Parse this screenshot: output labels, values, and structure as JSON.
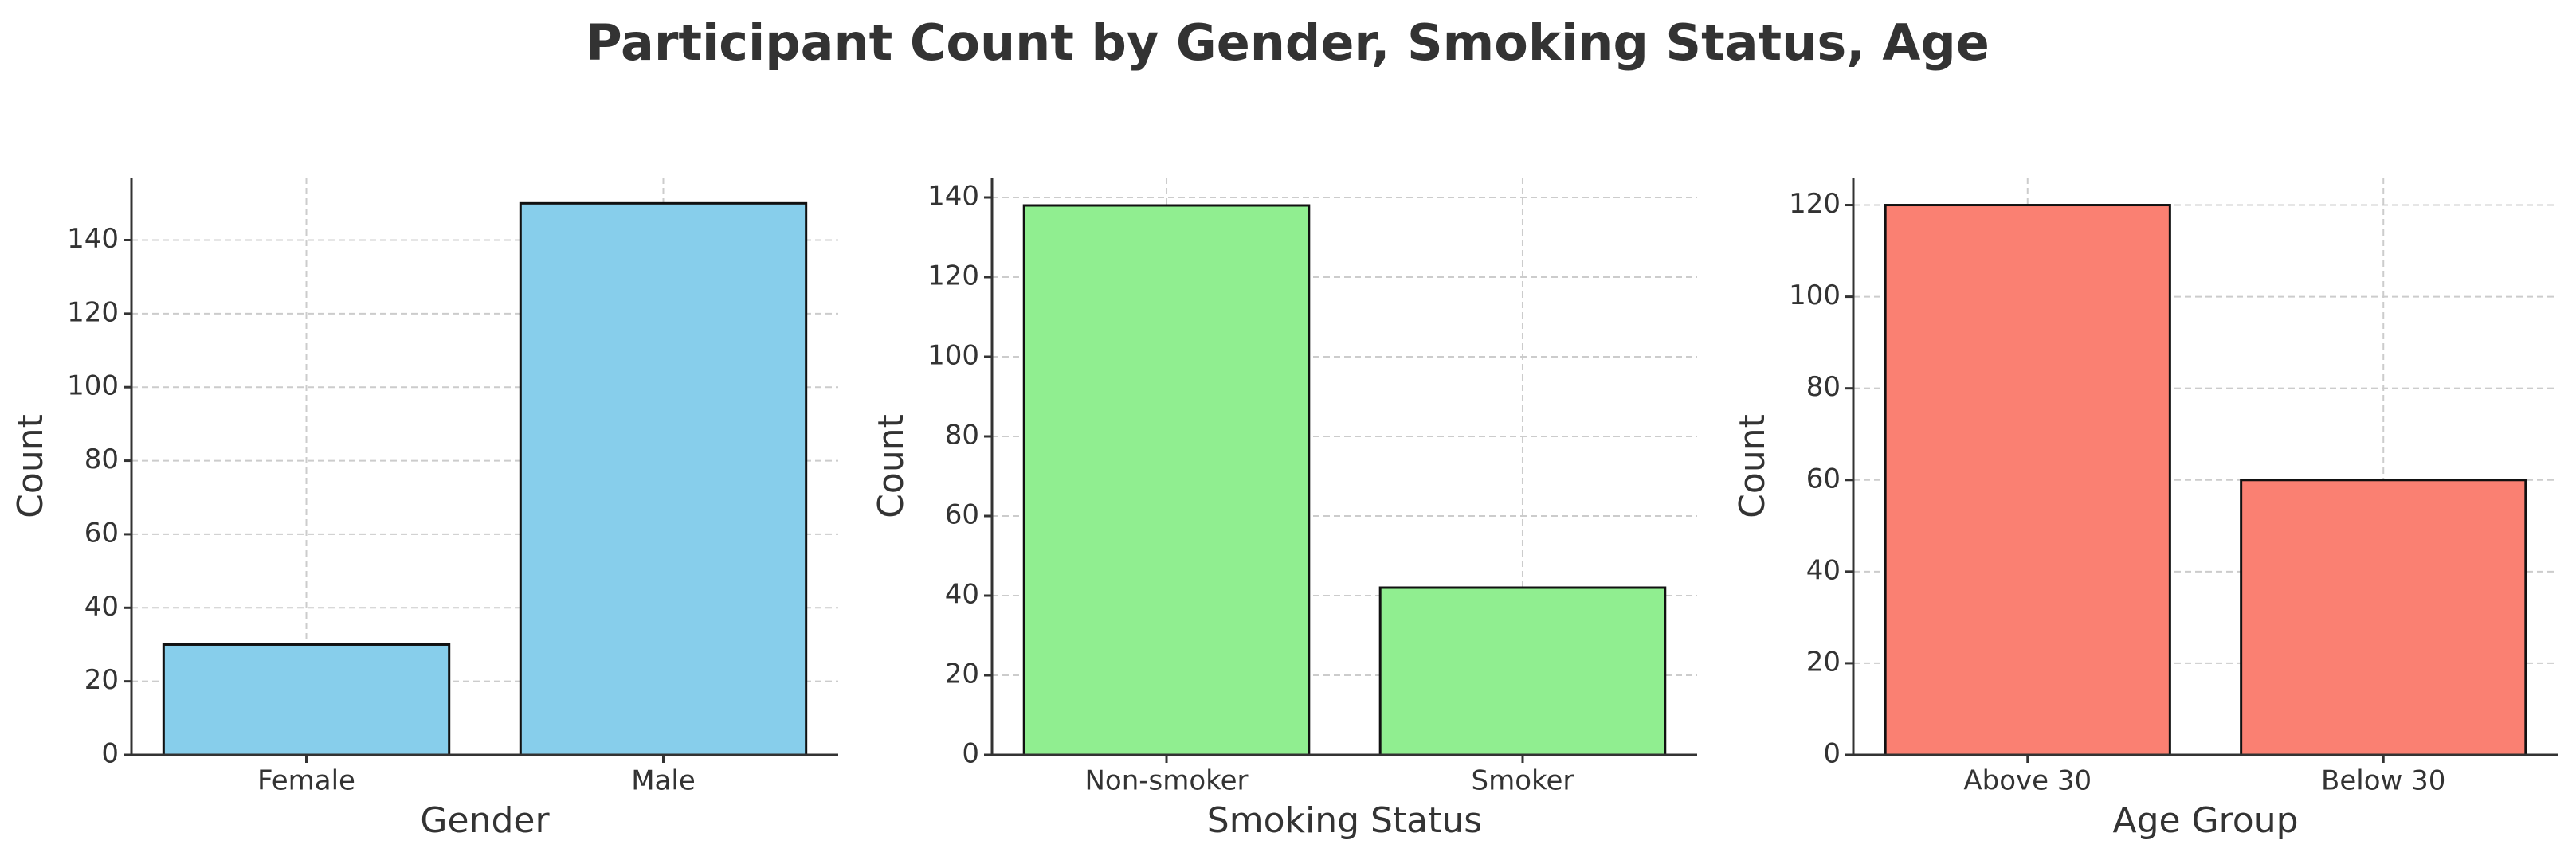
{
  "title": "Participant Count by Gender, Smoking Status, Age",
  "chart_data": [
    {
      "type": "bar",
      "categories": [
        "Female",
        "Male"
      ],
      "values": [
        30,
        150
      ],
      "color": "#87ceeb",
      "xlabel": "Gender",
      "ylabel": "Count",
      "ylim": [
        0,
        157
      ],
      "yticks": [
        0,
        20,
        40,
        60,
        80,
        100,
        120,
        140
      ],
      "grid": true
    },
    {
      "type": "bar",
      "categories": [
        "Non-smoker",
        "Smoker"
      ],
      "values": [
        138,
        42
      ],
      "color": "#90ee90",
      "xlabel": "Smoking Status",
      "ylabel": "Count",
      "ylim": [
        0,
        145
      ],
      "yticks": [
        0,
        20,
        40,
        60,
        80,
        100,
        120,
        140
      ],
      "grid": true
    },
    {
      "type": "bar",
      "categories": [
        "Above 30",
        "Below 30"
      ],
      "values": [
        120,
        60
      ],
      "color": "#fa8072",
      "xlabel": "Age Group",
      "ylabel": "Count",
      "ylim": [
        0,
        126
      ],
      "yticks": [
        0,
        20,
        40,
        60,
        80,
        100,
        120
      ],
      "grid": true
    }
  ]
}
